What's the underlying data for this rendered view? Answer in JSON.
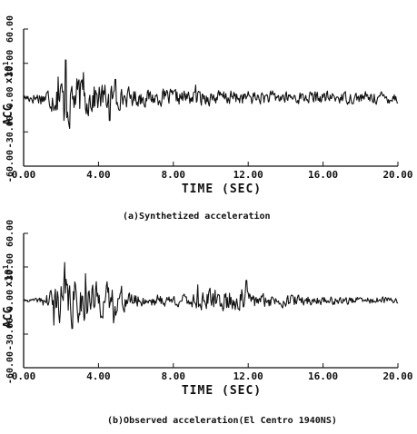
{
  "chart_data": [
    {
      "type": "line",
      "caption": "(a)Synthetized acceleration",
      "xlabel": "TIME (SEC)",
      "ylabel": "ACC",
      "yunit": "x10",
      "yunit_exp": "1",
      "xlim": [
        0,
        20
      ],
      "ylim": [
        -60,
        60
      ],
      "xticks": [
        "0.00",
        "4.00",
        "8.00",
        "12.00",
        "16.00",
        "20.00"
      ],
      "yticks": [
        "60.00",
        "30.00",
        "0.00",
        "-30.00",
        "-60.00"
      ],
      "grid": false,
      "legend": "none",
      "series": [
        {
          "envelope": [
            [
              0,
              5
            ],
            [
              1.0,
              9
            ],
            [
              1.8,
              20
            ],
            [
              2.3,
              34
            ],
            [
              2.8,
              26
            ],
            [
              3.6,
              20
            ],
            [
              4.4,
              16
            ],
            [
              5.2,
              12
            ],
            [
              6.5,
              10
            ],
            [
              9.0,
              9
            ],
            [
              12.0,
              8
            ],
            [
              16.0,
              7
            ],
            [
              20.0,
              7
            ]
          ],
          "spikes": [
            [
              2.25,
              33
            ],
            [
              2.45,
              -27
            ],
            [
              2.15,
              -20
            ],
            [
              1.85,
              18
            ],
            [
              3.2,
              22
            ],
            [
              4.6,
              -20
            ],
            [
              9.2,
              11
            ],
            [
              4.9,
              16
            ]
          ],
          "seed": 17
        }
      ]
    },
    {
      "type": "line",
      "caption": "(b)Observed acceleration(El Centro 1940NS)",
      "xlabel": "TIME (SEC)",
      "ylabel": "ACC",
      "yunit": "x10",
      "yunit_exp": "1",
      "xlim": [
        0,
        20
      ],
      "ylim": [
        -60,
        60
      ],
      "xticks": [
        "0.00",
        "4.00",
        "8.00",
        "12.00",
        "16.00",
        "20.00"
      ],
      "yticks": [
        "60.00",
        "30.00",
        "0.00",
        "-30.00",
        "-60.00"
      ],
      "grid": false,
      "legend": "none",
      "series": [
        {
          "envelope": [
            [
              0,
              1
            ],
            [
              0.8,
              3
            ],
            [
              1.3,
              12
            ],
            [
              2.2,
              30
            ],
            [
              2.8,
              25
            ],
            [
              3.8,
              22
            ],
            [
              5.2,
              17
            ],
            [
              5.8,
              8
            ],
            [
              8.5,
              7
            ],
            [
              9.5,
              12
            ],
            [
              11.8,
              15
            ],
            [
              12.5,
              8
            ],
            [
              14.5,
              7
            ],
            [
              16.0,
              5
            ],
            [
              20.0,
              4
            ]
          ],
          "spikes": [
            [
              2.2,
              34
            ],
            [
              1.6,
              -22
            ],
            [
              2.6,
              -25
            ],
            [
              3.3,
              24
            ],
            [
              4.8,
              -20
            ],
            [
              11.9,
              18
            ],
            [
              9.3,
              14
            ]
          ],
          "seed": 41
        }
      ]
    }
  ]
}
